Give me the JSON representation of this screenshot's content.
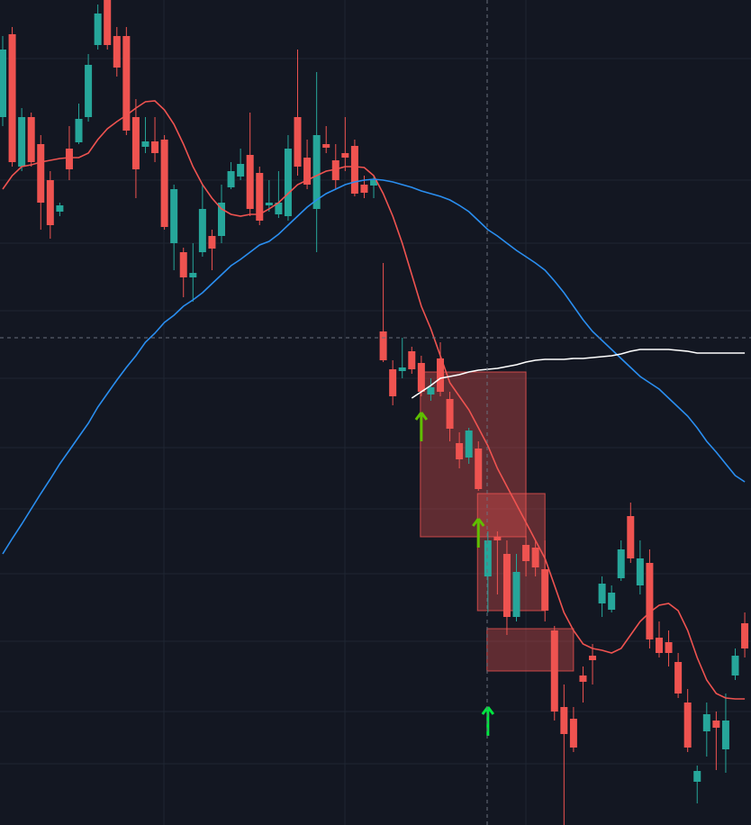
{
  "chart_data": {
    "type": "candlestick",
    "ylim": [
      0,
      916
    ],
    "up_color": "#26a69a",
    "down_color": "#ef5350",
    "open": [
      786,
      878,
      731,
      786,
      756,
      716,
      681,
      751,
      758,
      786,
      866,
      916,
      876,
      876,
      786,
      753,
      759,
      761,
      646,
      636,
      608,
      636,
      654,
      654,
      708,
      720,
      744,
      724,
      688,
      678,
      676,
      786,
      741,
      684,
      756,
      738,
      746,
      754,
      711,
      710,
      548,
      506,
      504,
      526,
      513,
      478,
      518,
      473,
      424,
      408,
      418,
      276,
      320,
      301,
      231,
      311,
      308,
      284,
      216,
      131,
      118,
      166,
      188,
      246,
      239,
      274,
      343,
      266,
      291,
      208,
      203,
      181,
      136,
      48,
      104,
      116,
      84,
      166,
      224
    ],
    "high": [
      876,
      886,
      796,
      791,
      766,
      726,
      691,
      776,
      801,
      856,
      911,
      916,
      886,
      886,
      806,
      786,
      786,
      766,
      711,
      641,
      646,
      711,
      661,
      711,
      736,
      751,
      791,
      731,
      716,
      726,
      766,
      861,
      761,
      836,
      776,
      756,
      786,
      761,
      721,
      721,
      624,
      516,
      541,
      531,
      521,
      496,
      536,
      481,
      436,
      441,
      426,
      326,
      326,
      316,
      301,
      321,
      316,
      316,
      221,
      156,
      131,
      176,
      201,
      276,
      266,
      316,
      358,
      316,
      306,
      226,
      216,
      191,
      151,
      66,
      136,
      126,
      146,
      196,
      236
    ],
    "low": [
      776,
      731,
      726,
      731,
      661,
      651,
      676,
      716,
      756,
      781,
      861,
      861,
      831,
      766,
      696,
      746,
      736,
      661,
      616,
      586,
      581,
      631,
      616,
      646,
      706,
      716,
      676,
      666,
      681,
      674,
      671,
      721,
      706,
      636,
      746,
      706,
      726,
      698,
      696,
      696,
      514,
      466,
      496,
      501,
      476,
      471,
      476,
      426,
      396,
      401,
      371,
      236,
      256,
      211,
      226,
      276,
      276,
      226,
      116,
      0,
      81,
      136,
      156,
      231,
      236,
      271,
      291,
      256,
      196,
      186,
      176,
      141,
      81,
      24,
      76,
      61,
      58,
      161,
      186
    ],
    "close": [
      861,
      736,
      786,
      736,
      691,
      666,
      688,
      728,
      784,
      844,
      901,
      866,
      841,
      771,
      728,
      759,
      746,
      664,
      706,
      608,
      613,
      684,
      640,
      691,
      726,
      734,
      684,
      671,
      691,
      691,
      751,
      731,
      711,
      766,
      752,
      716,
      741,
      701,
      702,
      716,
      516,
      476,
      508,
      506,
      481,
      486,
      481,
      440,
      406,
      438,
      373,
      316,
      316,
      231,
      281,
      293,
      286,
      238,
      126,
      101,
      86,
      159,
      183,
      268,
      258,
      306,
      296,
      296,
      206,
      191,
      191,
      146,
      86,
      60,
      123,
      108,
      116,
      188,
      196
    ],
    "series": [
      {
        "color": "#ef5350",
        "values": [
          706,
          721,
          731,
          733,
          736,
          738,
          740,
          741,
          741,
          746,
          761,
          773,
          781,
          788,
          796,
          803,
          804,
          794,
          778,
          756,
          731,
          711,
          696,
          684,
          678,
          676,
          678,
          678,
          684,
          691,
          701,
          711,
          716,
          721,
          726,
          728,
          731,
          731,
          730,
          721,
          701,
          676,
          646,
          611,
          576,
          551,
          521,
          491,
          476,
          461,
          441,
          421,
          396,
          376,
          356,
          336,
          316,
          296,
          266,
          236,
          216,
          201,
          196,
          194,
          191,
          196,
          211,
          226,
          236,
          244,
          246,
          238,
          216,
          186,
          161,
          146,
          141,
          140,
          140
        ]
      },
      {
        "color": "#2a8ef0",
        "values": [
          301,
          318,
          334,
          351,
          368,
          384,
          401,
          416,
          431,
          446,
          464,
          479,
          494,
          508,
          521,
          536,
          546,
          558,
          566,
          576,
          583,
          591,
          601,
          611,
          621,
          628,
          636,
          644,
          648,
          656,
          666,
          676,
          686,
          694,
          701,
          706,
          711,
          714,
          716,
          717,
          716,
          714,
          711,
          708,
          704,
          701,
          698,
          694,
          688,
          681,
          671,
          661,
          654,
          646,
          638,
          631,
          624,
          616,
          604,
          591,
          576,
          561,
          548,
          538,
          528,
          518,
          508,
          498,
          491,
          484,
          474,
          464,
          454,
          441,
          426,
          414,
          401,
          388,
          381
        ]
      },
      {
        "color": "#ffffff",
        "values": [
          null,
          null,
          null,
          null,
          null,
          null,
          null,
          null,
          null,
          null,
          null,
          null,
          null,
          null,
          null,
          null,
          null,
          null,
          null,
          null,
          null,
          null,
          null,
          null,
          null,
          null,
          null,
          null,
          null,
          null,
          null,
          null,
          null,
          null,
          null,
          null,
          null,
          null,
          null,
          null,
          null,
          null,
          null,
          474,
          481,
          488,
          496,
          498,
          500,
          503,
          505,
          506,
          507,
          509,
          511,
          514,
          516,
          517,
          517,
          517,
          518,
          518,
          519,
          520,
          521,
          523,
          526,
          528,
          528,
          528,
          528,
          527,
          526,
          524,
          524,
          524,
          524,
          524,
          524
        ]
      }
    ],
    "zones": [
      {
        "from": 44,
        "to": 55,
        "top": 503,
        "bottom": 320,
        "color": "#ef5350"
      },
      {
        "from": 50,
        "to": 57,
        "top": 368,
        "bottom": 238,
        "color": "#ef5350"
      },
      {
        "from": 51,
        "to": 60,
        "top": 218,
        "bottom": 171,
        "color": "#ef5350"
      }
    ],
    "signals": [
      {
        "index": 44,
        "value": 458,
        "color": "#5fbf00"
      },
      {
        "index": 50,
        "value": 340,
        "color": "#5fbf00"
      },
      {
        "index": 51,
        "value": 131,
        "color": "#00e640"
      }
    ]
  }
}
